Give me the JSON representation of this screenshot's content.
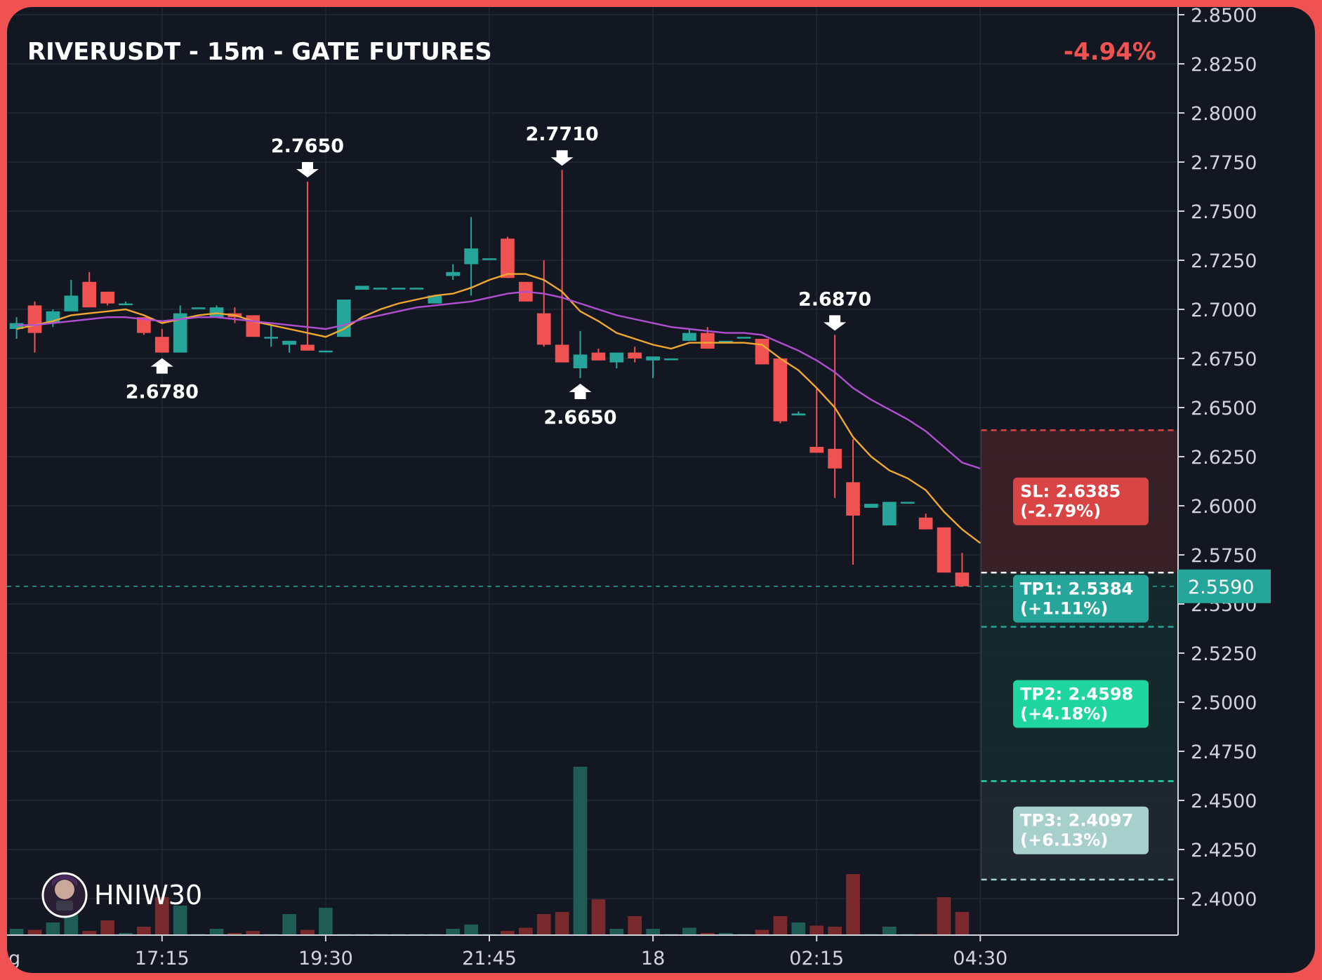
{
  "header": {
    "title": "RIVERUSDT - 15m - GATE FUTURES",
    "change": "-4.94%"
  },
  "watermark": {
    "name": "HNIW30",
    "avatar_icon": "avatar-icon"
  },
  "colors": {
    "up": "#26a69a",
    "down": "#f05252",
    "ema_fast": "#f0a830",
    "ema_slow": "#b04fd0",
    "stop_loss": "#d94545",
    "tp1": "#26a69a",
    "tp2": "#1fd6a0",
    "tp3": "#a7cfcb",
    "background": "#131722"
  },
  "chart_data": {
    "type": "candlestick",
    "title": "RIVERUSDT - 15m - GATE FUTURES",
    "change": "-4.94%",
    "ylim": [
      2.38,
      2.85
    ],
    "y_ticks": [
      "2.8500",
      "2.8250",
      "2.8000",
      "2.7750",
      "2.7500",
      "2.7250",
      "2.7000",
      "2.6750",
      "2.6500",
      "2.6250",
      "2.6000",
      "2.5750",
      "2.5500",
      "2.5250",
      "2.5000",
      "2.4750",
      "2.4500",
      "2.4250",
      "2.4000"
    ],
    "x_ticks": [
      {
        "label": "g",
        "bar": -0.4
      },
      {
        "label": "17:15",
        "bar": 8
      },
      {
        "label": "19:30",
        "bar": 17
      },
      {
        "label": "21:45",
        "bar": 26
      },
      {
        "label": "18",
        "bar": 35
      },
      {
        "label": "02:15",
        "bar": 44
      },
      {
        "label": "04:30",
        "bar": 53
      }
    ],
    "grid": true,
    "candles": [
      {
        "o": 2.69,
        "h": 2.696,
        "l": 2.685,
        "c": 2.693,
        "v": 0.3
      },
      {
        "o": 2.702,
        "h": 2.704,
        "l": 2.678,
        "c": 2.688,
        "v": 0.25
      },
      {
        "o": 2.693,
        "h": 2.7,
        "l": 2.691,
        "c": 2.699,
        "v": 0.6
      },
      {
        "o": 2.699,
        "h": 2.715,
        "l": 2.699,
        "c": 2.707,
        "v": 1.0
      },
      {
        "o": 2.714,
        "h": 2.719,
        "l": 2.701,
        "c": 2.701,
        "v": 0.2
      },
      {
        "o": 2.709,
        "h": 2.709,
        "l": 2.702,
        "c": 2.703,
        "v": 0.7
      },
      {
        "o": 2.703,
        "h": 2.704,
        "l": 2.703,
        "c": 2.703,
        "v": 0.1
      },
      {
        "o": 2.696,
        "h": 2.696,
        "l": 2.687,
        "c": 2.688,
        "v": 0.4
      },
      {
        "o": 2.686,
        "h": 2.69,
        "l": 2.678,
        "c": 2.678,
        "v": 1.8
      },
      {
        "o": 2.678,
        "h": 2.702,
        "l": 2.678,
        "c": 2.698,
        "v": 1.4
      },
      {
        "o": 2.701,
        "h": 2.701,
        "l": 2.701,
        "c": 2.701,
        "v": 0.05
      },
      {
        "o": 2.696,
        "h": 2.702,
        "l": 2.696,
        "c": 2.701,
        "v": 0.3
      },
      {
        "o": 2.698,
        "h": 2.701,
        "l": 2.693,
        "c": 2.696,
        "v": 0.1
      },
      {
        "o": 2.697,
        "h": 2.697,
        "l": 2.686,
        "c": 2.686,
        "v": 0.2
      },
      {
        "o": 2.686,
        "h": 2.692,
        "l": 2.681,
        "c": 2.686,
        "v": 0.05
      },
      {
        "o": 2.682,
        "h": 2.684,
        "l": 2.678,
        "c": 2.684,
        "v": 1.0
      },
      {
        "o": 2.682,
        "h": 2.765,
        "l": 2.679,
        "c": 2.679,
        "v": 0.25
      },
      {
        "o": 2.679,
        "h": 2.679,
        "l": 2.679,
        "c": 2.679,
        "v": 1.3
      },
      {
        "o": 2.686,
        "h": 2.705,
        "l": 2.686,
        "c": 2.705,
        "v": 0.05
      },
      {
        "o": 2.71,
        "h": 2.712,
        "l": 2.71,
        "c": 2.712,
        "v": 0.05
      },
      {
        "o": 2.711,
        "h": 2.711,
        "l": 2.711,
        "c": 2.711,
        "v": 0.05
      },
      {
        "o": 2.711,
        "h": 2.711,
        "l": 2.711,
        "c": 2.711,
        "v": 0.05
      },
      {
        "o": 2.711,
        "h": 2.711,
        "l": 2.711,
        "c": 2.711,
        "v": 0.05
      },
      {
        "o": 2.703,
        "h": 2.707,
        "l": 2.703,
        "c": 2.707,
        "v": 0.05
      },
      {
        "o": 2.717,
        "h": 2.723,
        "l": 2.715,
        "c": 2.719,
        "v": 0.3
      },
      {
        "o": 2.723,
        "h": 2.747,
        "l": 2.707,
        "c": 2.731,
        "v": 0.5
      },
      {
        "o": 2.726,
        "h": 2.726,
        "l": 2.726,
        "c": 2.726,
        "v": 0.05
      },
      {
        "o": 2.736,
        "h": 2.737,
        "l": 2.716,
        "c": 2.716,
        "v": 0.2
      },
      {
        "o": 2.714,
        "h": 2.714,
        "l": 2.704,
        "c": 2.704,
        "v": 0.35
      },
      {
        "o": 2.698,
        "h": 2.725,
        "l": 2.681,
        "c": 2.682,
        "v": 1.0
      },
      {
        "o": 2.682,
        "h": 2.771,
        "l": 2.673,
        "c": 2.673,
        "v": 1.1
      },
      {
        "o": 2.67,
        "h": 2.689,
        "l": 2.665,
        "c": 2.677,
        "v": 8.0
      },
      {
        "o": 2.678,
        "h": 2.68,
        "l": 2.674,
        "c": 2.674,
        "v": 1.7
      },
      {
        "o": 2.673,
        "h": 2.678,
        "l": 2.67,
        "c": 2.678,
        "v": 0.3
      },
      {
        "o": 2.678,
        "h": 2.681,
        "l": 2.673,
        "c": 2.675,
        "v": 0.9
      },
      {
        "o": 2.674,
        "h": 2.676,
        "l": 2.665,
        "c": 2.676,
        "v": 0.3
      },
      {
        "o": 2.675,
        "h": 2.675,
        "l": 2.675,
        "c": 2.675,
        "v": 0.05
      },
      {
        "o": 2.684,
        "h": 2.69,
        "l": 2.684,
        "c": 2.688,
        "v": 0.35
      },
      {
        "o": 2.688,
        "h": 2.691,
        "l": 2.68,
        "c": 2.68,
        "v": 0.1
      },
      {
        "o": 2.684,
        "h": 2.684,
        "l": 2.684,
        "c": 2.684,
        "v": 0.1
      },
      {
        "o": 2.686,
        "h": 2.686,
        "l": 2.686,
        "c": 2.686,
        "v": 0.05
      },
      {
        "o": 2.685,
        "h": 2.685,
        "l": 2.672,
        "c": 2.672,
        "v": 0.25
      },
      {
        "o": 2.675,
        "h": 2.675,
        "l": 2.642,
        "c": 2.643,
        "v": 0.9
      },
      {
        "o": 2.646,
        "h": 2.648,
        "l": 2.646,
        "c": 2.647,
        "v": 0.6
      },
      {
        "o": 2.63,
        "h": 2.66,
        "l": 2.627,
        "c": 2.627,
        "v": 0.45
      },
      {
        "o": 2.629,
        "h": 2.687,
        "l": 2.604,
        "c": 2.619,
        "v": 0.4
      },
      {
        "o": 2.612,
        "h": 2.634,
        "l": 2.57,
        "c": 2.595,
        "v": 2.9
      },
      {
        "o": 2.599,
        "h": 2.601,
        "l": 2.599,
        "c": 2.601,
        "v": 0.05
      },
      {
        "o": 2.59,
        "h": 2.602,
        "l": 2.59,
        "c": 2.602,
        "v": 0.4
      },
      {
        "o": 2.602,
        "h": 2.602,
        "l": 2.602,
        "c": 2.602,
        "v": 0.05
      },
      {
        "o": 2.594,
        "h": 2.596,
        "l": 2.588,
        "c": 2.588,
        "v": 0.05
      },
      {
        "o": 2.589,
        "h": 2.589,
        "l": 2.566,
        "c": 2.566,
        "v": 1.8
      },
      {
        "o": 2.566,
        "h": 2.576,
        "l": 2.559,
        "c": 2.559,
        "v": 1.1
      }
    ],
    "series": [
      {
        "type": "line",
        "color": "#f0a830",
        "values": [
          2.69,
          2.692,
          2.694,
          2.697,
          2.698,
          2.699,
          2.7,
          2.697,
          2.693,
          2.695,
          2.697,
          2.698,
          2.697,
          2.694,
          2.692,
          2.69,
          2.688,
          2.686,
          2.69,
          2.696,
          2.7,
          2.703,
          2.705,
          2.707,
          2.708,
          2.711,
          2.715,
          2.718,
          2.718,
          2.715,
          2.709,
          2.699,
          2.694,
          2.688,
          2.685,
          2.682,
          2.68,
          2.683,
          2.683,
          2.683,
          2.683,
          2.682,
          2.675,
          2.669,
          2.66,
          2.65,
          2.635,
          2.625,
          2.618,
          2.614,
          2.608,
          2.597,
          2.588,
          2.581
        ]
      },
      {
        "type": "line",
        "color": "#b04fd0",
        "values": [
          2.692,
          2.692,
          2.693,
          2.694,
          2.695,
          2.696,
          2.696,
          2.695,
          2.694,
          2.695,
          2.696,
          2.696,
          2.695,
          2.694,
          2.693,
          2.692,
          2.691,
          2.69,
          2.692,
          2.695,
          2.697,
          2.699,
          2.701,
          2.702,
          2.703,
          2.704,
          2.706,
          2.708,
          2.709,
          2.708,
          2.706,
          2.703,
          2.7,
          2.697,
          2.695,
          2.693,
          2.691,
          2.69,
          2.689,
          2.688,
          2.688,
          2.687,
          2.683,
          2.679,
          2.674,
          2.668,
          2.66,
          2.654,
          2.649,
          2.644,
          2.638,
          2.63,
          2.622,
          2.619
        ]
      }
    ],
    "annotations": [
      {
        "bar": 8,
        "text": "2.6780",
        "dir": "up",
        "price": 2.678
      },
      {
        "bar": 16,
        "text": "2.7650",
        "dir": "down",
        "price": 2.765
      },
      {
        "bar": 30,
        "text": "2.7710",
        "dir": "down",
        "price": 2.771
      },
      {
        "bar": 31,
        "text": "2.6650",
        "dir": "up",
        "price": 2.665
      },
      {
        "bar": 45,
        "text": "2.6870",
        "dir": "down",
        "price": 2.687
      }
    ],
    "levels": {
      "entry": 2.566,
      "sl": {
        "price": 2.6385,
        "label": "SL: 2.6385",
        "pct": "(-2.79%)"
      },
      "tp1": {
        "price": 2.5384,
        "label": "TP1: 2.5384",
        "pct": "(+1.11%)"
      },
      "tp2": {
        "price": 2.4598,
        "label": "TP2: 2.4598",
        "pct": "(+4.18%)"
      },
      "tp3": {
        "price": 2.4097,
        "label": "TP3: 2.4097",
        "pct": "(+6.13%)"
      }
    },
    "last_price": {
      "value": 2.559,
      "label": "2.5590"
    }
  }
}
